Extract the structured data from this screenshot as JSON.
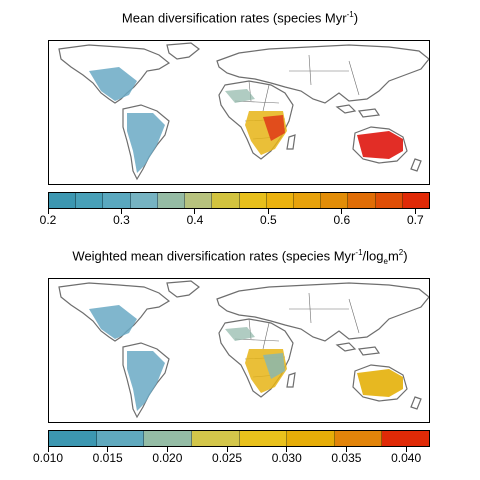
{
  "panels": [
    {
      "title_prefix": "Mean diversification rates (species Myr",
      "title_sup1": "-1",
      "title_suffix": ")",
      "legend": {
        "colors": [
          "#3c97b1",
          "#48a0b8",
          "#5aa8bf",
          "#76b3c2",
          "#95bba4",
          "#b7c27e",
          "#d2c33f",
          "#e7bf1c",
          "#ebb20f",
          "#e7a20c",
          "#e28d08",
          "#e06d06",
          "#e04e06",
          "#e02a07"
        ],
        "range": [
          0.2,
          0.72
        ],
        "ticks": [
          "0.2",
          "0.3",
          "0.4",
          "0.5",
          "0.6",
          "0.7"
        ],
        "tick_values": [
          0.2,
          0.3,
          0.4,
          0.5,
          0.6,
          0.7
        ]
      }
    },
    {
      "title_prefix": "Weighted mean diversification rates (species Myr",
      "title_sup1": "-1",
      "title_mid": "/log",
      "title_sub": "e",
      "title_mid2": "m",
      "title_sup2": "2",
      "title_suffix": ")",
      "legend": {
        "colors": [
          "#3c97b1",
          "#60a9be",
          "#94bca5",
          "#d3c64a",
          "#e9c11c",
          "#e6ad08",
          "#e2840a",
          "#e02a07"
        ],
        "range": [
          0.01,
          0.042
        ],
        "ticks": [
          "0.010",
          "0.015",
          "0.020",
          "0.025",
          "0.030",
          "0.035",
          "0.040"
        ],
        "tick_values": [
          0.01,
          0.015,
          0.02,
          0.025,
          0.03,
          0.035,
          0.04
        ]
      }
    }
  ],
  "map_colors": {
    "outline": "#6e6e6e",
    "americas": "#6aa9c4",
    "africa_low": "#8fb7a8",
    "africa_mid": "#e6b415",
    "africa_high": "#e0401a",
    "australia_top": "#e0221a",
    "australia_bottom": "#e6b415"
  }
}
